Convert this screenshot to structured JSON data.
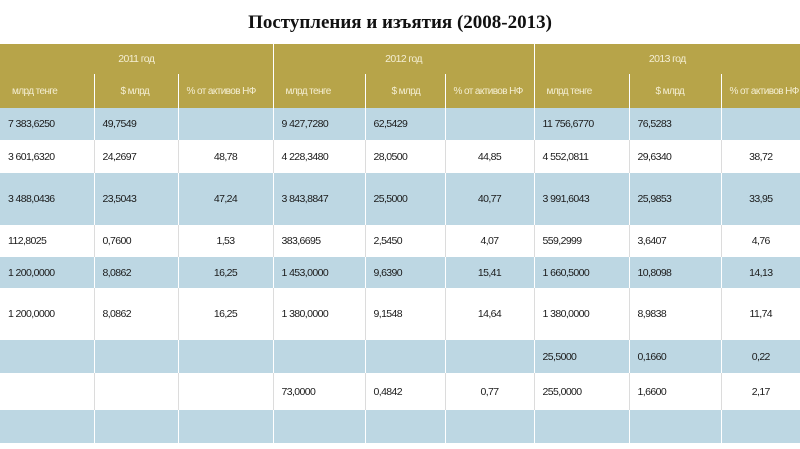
{
  "title": "Поступления и изъятия (2008-2013)",
  "years": [
    "2011 год",
    "2012 год",
    "2013 год"
  ],
  "subheaders": [
    "млрд тенге",
    "$ млрд",
    "% от активов НФ",
    "млрд тенге",
    "$ млрд",
    "% от активов НФ",
    "млрд тенге",
    "$ млрд",
    "% от активов НФ"
  ],
  "rows": [
    {
      "style": "blue",
      "h": 32,
      "cells": [
        "7 383,6250",
        "49,7549",
        "",
        "9 427,7280",
        "62,5429",
        "",
        "11 756,6770",
        "76,5283",
        ""
      ]
    },
    {
      "style": "white",
      "h": 33,
      "cells": [
        "3 601,6320",
        "24,2697",
        "48,78",
        "4 228,3480",
        "28,0500",
        "44,85",
        "4 552,0811",
        "29,6340",
        "38,72"
      ]
    },
    {
      "style": "blue",
      "h": 52,
      "cells": [
        "3 488,0436",
        "23,5043",
        "47,24",
        "3 843,8847",
        "25,5000",
        "40,77",
        "3 991,6043",
        "25,9853",
        "33,95"
      ]
    },
    {
      "style": "white",
      "h": 32,
      "cells": [
        "112,8025",
        "0,7600",
        "1,53",
        "383,6695",
        "2,5450",
        "4,07",
        "559,2999",
        "3,6407",
        "4,76"
      ]
    },
    {
      "style": "blue",
      "h": 31,
      "cells": [
        "1 200,0000",
        "8,0862",
        "16,25",
        "1 453,0000",
        "9,6390",
        "15,41",
        "1 660,5000",
        "10,8098",
        "14,13"
      ]
    },
    {
      "style": "white",
      "h": 52,
      "cells": [
        "1 200,0000",
        "8,0862",
        "16,25",
        "1 380,0000",
        "9,1548",
        "14,64",
        "1 380,0000",
        "8,9838",
        "11,74"
      ]
    },
    {
      "style": "blue",
      "h": 33,
      "cells": [
        "",
        "",
        "",
        "",
        "",
        "",
        "25,5000",
        "0,1660",
        "0,22"
      ]
    },
    {
      "style": "white",
      "h": 37,
      "cells": [
        "",
        "",
        "",
        "73,0000",
        "0,4842",
        "0,77",
        "255,0000",
        "1,6600",
        "2,17"
      ]
    },
    {
      "style": "blue",
      "h": 33,
      "cells": [
        "",
        "",
        "",
        "",
        "",
        "",
        "",
        "",
        ""
      ]
    }
  ]
}
